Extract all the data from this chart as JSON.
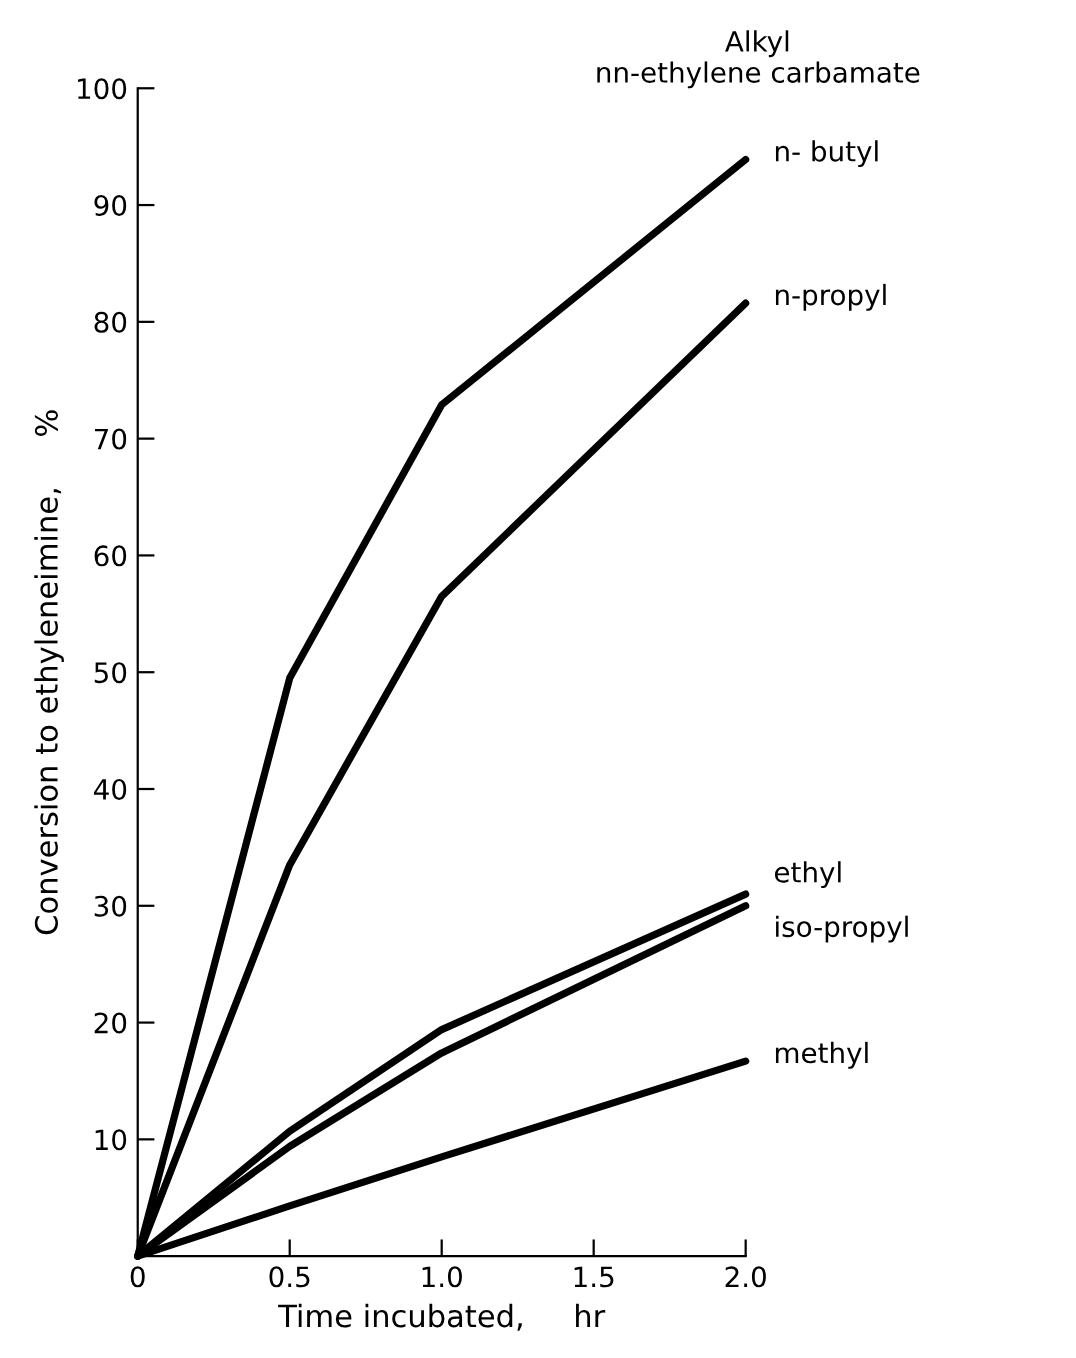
{
  "chart_data": {
    "type": "line",
    "xlabel": "Time incubated,     hr",
    "ylabel": "Conversion to ethyleneimine,     %",
    "legend_title": "Alkyl\nnn-ethylene carbamate",
    "x": [
      0,
      0.5,
      1.0,
      2.0
    ],
    "series": [
      {
        "name": "n- butyl",
        "color": "#000000",
        "values": [
          0,
          49.5,
          72.9,
          93.9
        ]
      },
      {
        "name": "n-propyl",
        "color": "#000000",
        "values": [
          0,
          33.5,
          56.5,
          81.6
        ]
      },
      {
        "name": "ethyl",
        "color": "#000000",
        "values": [
          0,
          10.7,
          19.4,
          31
        ]
      },
      {
        "name": "iso-propyl",
        "color": "#000000",
        "values": [
          0,
          9.4,
          17.4,
          30
        ]
      },
      {
        "name": "methyl",
        "color": "#000000",
        "values": [
          0,
          4.3,
          8.5,
          16.7
        ]
      }
    ],
    "xlim": [
      0,
      2.0
    ],
    "ylim": [
      0,
      100
    ],
    "xticks": [
      0,
      0.5,
      {
        "value": 1.0,
        "label": "1.0"
      },
      1.5,
      {
        "value": 2.0,
        "label": "2.0"
      }
    ],
    "yticks": [
      10,
      20,
      30,
      40,
      50,
      60,
      70,
      80,
      90,
      100
    ],
    "grid": false,
    "line_style": "solid"
  }
}
